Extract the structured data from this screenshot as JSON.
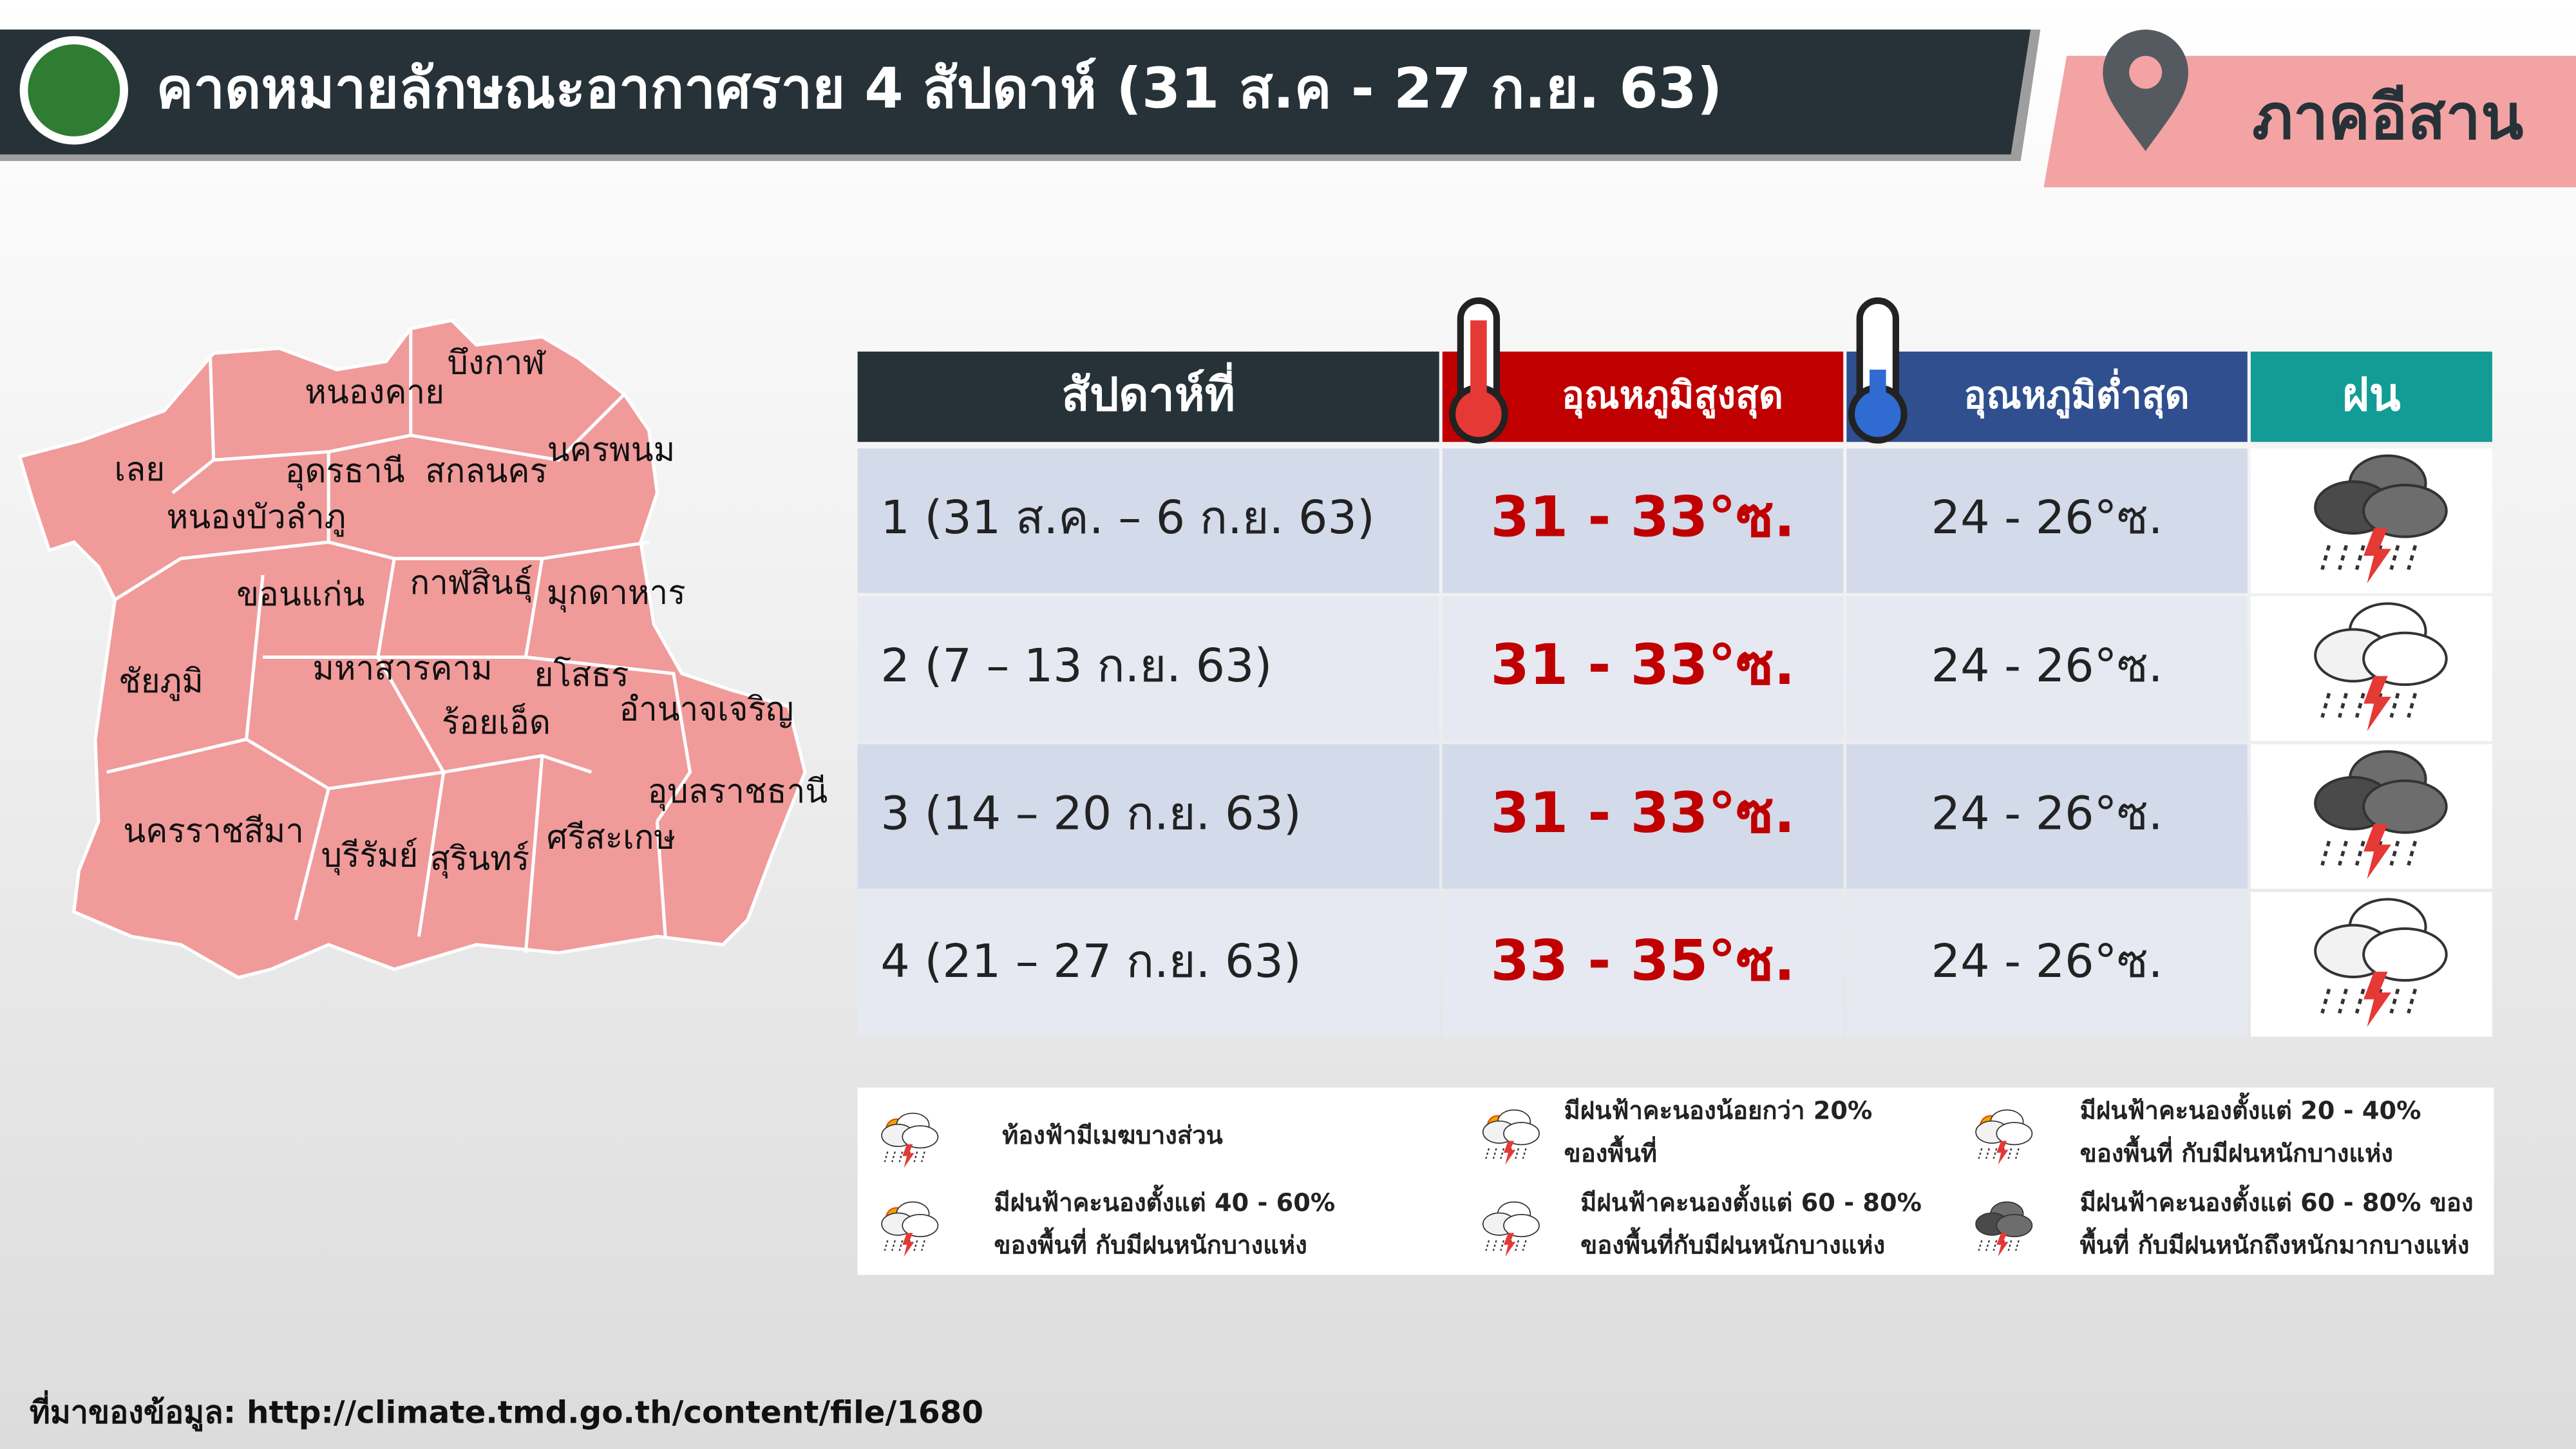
{
  "header": {
    "title": "คาดหมายลักษณะอากาศราย 4 สัปดาห์ (31 ส.ค - 27 ก.ย. 63)",
    "region": "ภาคอีสาน"
  },
  "map": {
    "provinces": [
      "บึงกาฬ",
      "หนองคาย",
      "นครพนม",
      "เลย",
      "อุดรธานี",
      "สกลนคร",
      "หนองบัวลำภู",
      "ขอนแก่น",
      "กาฬสินธุ์",
      "มุกดาหาร",
      "ชัยภูมิ",
      "มหาสารคาม",
      "ยโสธร",
      "อำนาจเจริญ",
      "ร้อยเอ็ด",
      "อุบลราชธานี",
      "นครราชสีมา",
      "ศรีสะเกษ",
      "บุรีรัมย์",
      "สุรินทร์"
    ]
  },
  "table": {
    "columns": [
      "สัปดาห์ที่",
      "อุณหภูมิสูงสุด",
      "อุณหภูมิต่ำสุด",
      "ฝน"
    ],
    "rows": [
      [
        "1 (31 ส.ค. – 6 ก.ย. 63)",
        "31 - 33°ซ.",
        "24 - 26°ซ."
      ],
      [
        "2 (7 – 13 ก.ย. 63)",
        "31 - 33°ซ.",
        "24 - 26°ซ."
      ],
      [
        "3 (14 – 20 ก.ย. 63)",
        "31 - 33°ซ.",
        "24 - 26°ซ."
      ],
      [
        "4 (21 – 27 ก.ย. 63)",
        "33 - 35°ซ.",
        "24 - 26°ซ."
      ]
    ]
  },
  "legend": {
    "items": [
      {
        "lines": [
          "ท้องฟ้ามีเมฆบางส่วน"
        ]
      },
      {
        "lines": [
          "มีฝนฟ้าคะนองน้อยกว่า 20%",
          "ของพื้นที่"
        ]
      },
      {
        "lines": [
          "มีฝนฟ้าคะนองตั้งแต่ 20 - 40%",
          "ของพื้นที่ กับมีฝนหนักบางแห่ง"
        ]
      },
      {
        "lines": [
          "มีฝนฟ้าคะนองตั้งแต่ 40 - 60%",
          "ของพื้นที่ กับมีฝนหนักบางแห่ง"
        ]
      },
      {
        "lines": [
          "มีฝนฟ้าคะนองตั้งแต่ 60 - 80%",
          "ของพื้นที่กับมีฝนหนักบางแห่ง"
        ]
      },
      {
        "lines": [
          "มีฝนฟ้าคะนองตั้งแต่ 60 - 80% ของ",
          "พื้นที่ กับมีฝนหนักถึงหนักมากบางแห่ง"
        ]
      }
    ]
  },
  "source": "ที่มาของข้อมูล: http://climate.tmd.go.th/content/file/1680"
}
